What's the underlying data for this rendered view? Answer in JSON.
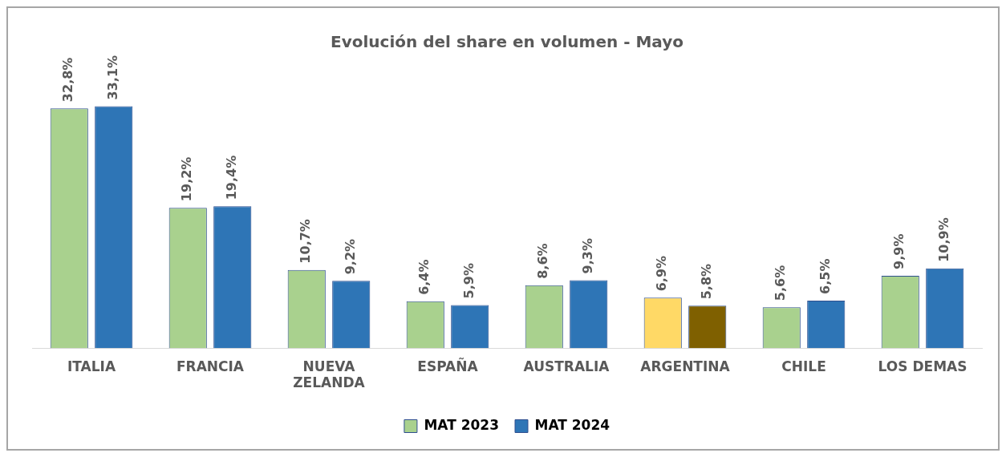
{
  "chart_data": {
    "type": "bar",
    "title": "Evolución del share en volumen - Mayo",
    "categories": [
      "ITALIA",
      "FRANCIA",
      "NUEVA ZELANDA",
      "ESPAÑA",
      "AUSTRALIA",
      "ARGENTINA",
      "CHILE",
      "LOS DEMAS"
    ],
    "series": [
      {
        "name": "MAT 2023",
        "color": "#a9d18e",
        "colors": [
          "#a9d18e",
          "#a9d18e",
          "#a9d18e",
          "#a9d18e",
          "#a9d18e",
          "#ffd966",
          "#a9d18e",
          "#a9d18e"
        ],
        "values": [
          32.8,
          19.2,
          10.7,
          6.4,
          8.6,
          6.9,
          5.6,
          9.9
        ],
        "value_labels": [
          "32,8%",
          "19,2%",
          "10,7%",
          "6,4%",
          "8,6%",
          "6,9%",
          "5,6%",
          "9,9%"
        ]
      },
      {
        "name": "MAT 2024",
        "color": "#2e75b6",
        "colors": [
          "#2e75b6",
          "#2e75b6",
          "#2e75b6",
          "#2e75b6",
          "#2e75b6",
          "#7f6000",
          "#2e75b6",
          "#2e75b6"
        ],
        "values": [
          33.1,
          19.4,
          9.2,
          5.9,
          9.3,
          5.8,
          6.5,
          10.9
        ],
        "value_labels": [
          "33,1%",
          "19,4%",
          "9,2%",
          "5,9%",
          "9,3%",
          "5,8%",
          "6,5%",
          "10,9%"
        ]
      }
    ],
    "legend": "bottom",
    "grid": false
  }
}
